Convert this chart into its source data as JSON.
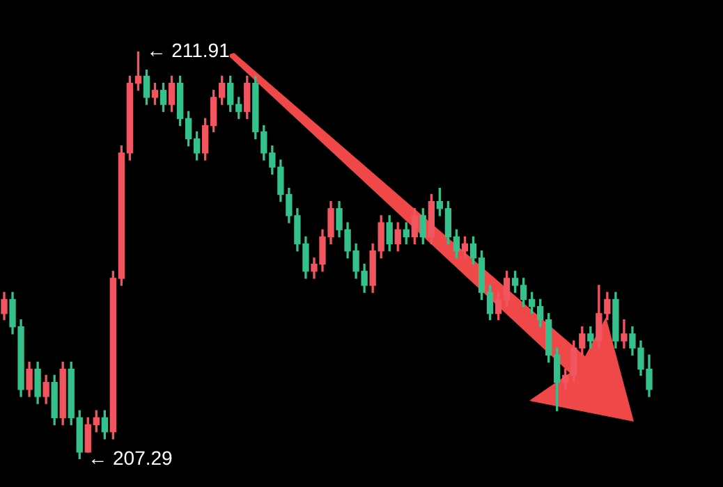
{
  "chart_data": {
    "type": "candlestick",
    "relative": false,
    "categories": [
      null,
      null,
      null,
      null,
      null,
      null,
      null,
      null,
      null,
      null,
      null,
      null,
      null,
      null,
      null,
      null,
      null,
      null,
      null,
      null,
      null,
      null,
      null,
      null,
      null,
      null,
      null,
      null,
      null,
      null,
      null,
      null,
      null,
      null,
      null,
      null,
      null,
      null,
      null,
      null,
      null,
      null,
      null,
      null,
      null,
      null,
      null,
      null,
      null,
      null,
      null,
      null,
      null,
      null,
      null,
      null,
      null,
      null,
      null,
      null,
      null,
      null,
      null,
      null,
      null,
      null,
      null,
      null,
      null,
      null,
      null,
      null,
      null,
      null,
      null,
      null,
      null,
      null
    ],
    "ohlc": [
      [
        208.94,
        209.18,
        208.87,
        209.1
      ],
      [
        209.1,
        209.18,
        208.71,
        208.79
      ],
      [
        208.79,
        208.87,
        208.0,
        208.08
      ],
      [
        208.08,
        208.39,
        208.0,
        208.31
      ],
      [
        208.31,
        208.39,
        207.92,
        208.0
      ],
      [
        208.0,
        208.24,
        207.92,
        208.16
      ],
      [
        208.16,
        208.24,
        207.68,
        207.76
      ],
      [
        207.76,
        208.39,
        207.68,
        208.31
      ],
      [
        208.31,
        208.39,
        207.68,
        207.76
      ],
      [
        207.76,
        207.84,
        207.29,
        207.37
      ],
      [
        207.37,
        207.76,
        207.37,
        207.68
      ],
      [
        207.68,
        207.84,
        207.6,
        207.76
      ],
      [
        207.76,
        207.84,
        207.52,
        207.6
      ],
      [
        207.6,
        209.42,
        207.52,
        209.34
      ],
      [
        209.34,
        210.84,
        209.26,
        210.76
      ],
      [
        210.76,
        211.63,
        210.68,
        211.55
      ],
      [
        211.55,
        211.91,
        211.47,
        211.63
      ],
      [
        211.63,
        211.7,
        211.31,
        211.39
      ],
      [
        211.39,
        211.55,
        211.31,
        211.47
      ],
      [
        211.47,
        211.55,
        211.23,
        211.31
      ],
      [
        211.31,
        211.63,
        211.23,
        211.55
      ],
      [
        211.55,
        211.63,
        211.07,
        211.15
      ],
      [
        211.15,
        211.23,
        210.84,
        210.92
      ],
      [
        210.92,
        211.0,
        210.68,
        210.76
      ],
      [
        210.76,
        211.15,
        210.68,
        211.07
      ],
      [
        211.07,
        211.47,
        211.0,
        211.39
      ],
      [
        211.39,
        211.63,
        211.31,
        211.55
      ],
      [
        211.55,
        211.63,
        211.23,
        211.31
      ],
      [
        211.31,
        211.39,
        211.15,
        211.23
      ],
      [
        211.23,
        211.63,
        211.15,
        211.55
      ],
      [
        211.55,
        211.63,
        210.92,
        211.0
      ],
      [
        211.0,
        211.07,
        210.68,
        210.76
      ],
      [
        210.76,
        210.84,
        210.52,
        210.6
      ],
      [
        210.6,
        210.68,
        210.21,
        210.29
      ],
      [
        210.29,
        210.36,
        209.97,
        210.05
      ],
      [
        210.05,
        210.13,
        209.65,
        209.73
      ],
      [
        209.73,
        209.81,
        209.34,
        209.42
      ],
      [
        209.42,
        209.57,
        209.34,
        209.5
      ],
      [
        209.5,
        209.89,
        209.42,
        209.81
      ],
      [
        209.81,
        210.21,
        209.73,
        210.13
      ],
      [
        210.13,
        210.21,
        209.81,
        209.89
      ],
      [
        209.89,
        209.97,
        209.57,
        209.65
      ],
      [
        209.65,
        209.73,
        209.34,
        209.42
      ],
      [
        209.42,
        209.5,
        209.18,
        209.26
      ],
      [
        209.26,
        209.73,
        209.18,
        209.65
      ],
      [
        209.65,
        210.05,
        209.57,
        209.97
      ],
      [
        209.97,
        210.05,
        209.65,
        209.73
      ],
      [
        209.73,
        209.97,
        209.65,
        209.89
      ],
      [
        209.89,
        209.97,
        209.73,
        209.81
      ],
      [
        209.81,
        210.13,
        209.73,
        210.05
      ],
      [
        210.05,
        210.13,
        209.73,
        209.81
      ],
      [
        209.81,
        210.29,
        209.73,
        210.21
      ],
      [
        210.21,
        210.36,
        210.05,
        210.13
      ],
      [
        210.13,
        210.21,
        209.73,
        209.81
      ],
      [
        209.81,
        209.89,
        209.57,
        209.65
      ],
      [
        209.65,
        209.81,
        209.57,
        209.73
      ],
      [
        209.73,
        209.81,
        209.5,
        209.57
      ],
      [
        209.57,
        209.65,
        209.1,
        209.18
      ],
      [
        209.18,
        209.26,
        208.87,
        208.94
      ],
      [
        208.94,
        209.18,
        208.87,
        209.1
      ],
      [
        209.1,
        209.42,
        209.02,
        209.34
      ],
      [
        209.34,
        209.42,
        209.18,
        209.26
      ],
      [
        209.26,
        209.34,
        209.02,
        209.1
      ],
      [
        209.1,
        209.18,
        208.94,
        209.02
      ],
      [
        209.02,
        209.1,
        208.79,
        208.87
      ],
      [
        208.87,
        208.94,
        208.39,
        208.47
      ],
      [
        208.47,
        208.55,
        207.84,
        208.16
      ],
      [
        208.16,
        208.31,
        208.08,
        208.24
      ],
      [
        208.24,
        208.63,
        208.16,
        208.55
      ],
      [
        208.55,
        208.79,
        208.47,
        208.71
      ],
      [
        208.71,
        208.79,
        208.55,
        208.63
      ],
      [
        208.63,
        209.26,
        208.55,
        208.94
      ],
      [
        208.94,
        209.18,
        208.87,
        209.1
      ],
      [
        209.1,
        209.18,
        208.55,
        208.63
      ],
      [
        208.63,
        208.87,
        208.55,
        208.71
      ],
      [
        208.71,
        208.79,
        208.47,
        208.55
      ],
      [
        208.55,
        208.63,
        208.24,
        208.31
      ],
      [
        208.31,
        208.47,
        208.0,
        208.08
      ]
    ],
    "colors": [
      "#f05560",
      "#34c18c",
      "#34c18c",
      "#f05560",
      "#34c18c",
      "#f05560",
      "#34c18c",
      "#f05560",
      "#34c18c",
      "#34c18c",
      "#f05560",
      "#f05560",
      "#34c18c",
      "#f05560",
      "#f05560",
      "#f05560",
      "#f05560",
      "#34c18c",
      "#f05560",
      "#34c18c",
      "#f05560",
      "#34c18c",
      "#34c18c",
      "#34c18c",
      "#f05560",
      "#f05560",
      "#f05560",
      "#34c18c",
      "#34c18c",
      "#f05560",
      "#34c18c",
      "#34c18c",
      "#34c18c",
      "#34c18c",
      "#34c18c",
      "#34c18c",
      "#34c18c",
      "#f05560",
      "#f05560",
      "#f05560",
      "#34c18c",
      "#34c18c",
      "#34c18c",
      "#34c18c",
      "#f05560",
      "#f05560",
      "#34c18c",
      "#f05560",
      "#34c18c",
      "#f05560",
      "#34c18c",
      "#f05560",
      "#34c18c",
      "#34c18c",
      "#34c18c",
      "#f05560",
      "#34c18c",
      "#34c18c",
      "#34c18c",
      "#f05560",
      "#f05560",
      "#34c18c",
      "#34c18c",
      "#34c18c",
      "#34c18c",
      "#34c18c",
      "#34c18c",
      "#f05560",
      "#f05560",
      "#f05560",
      "#34c18c",
      "#f05560",
      "#f05560",
      "#34c18c",
      "#f05560",
      "#34c18c",
      "#34c18c",
      "#34c18c"
    ],
    "annotations": [
      "← 211.91",
      "← 207.29"
    ],
    "tick_labels": false
  }
}
